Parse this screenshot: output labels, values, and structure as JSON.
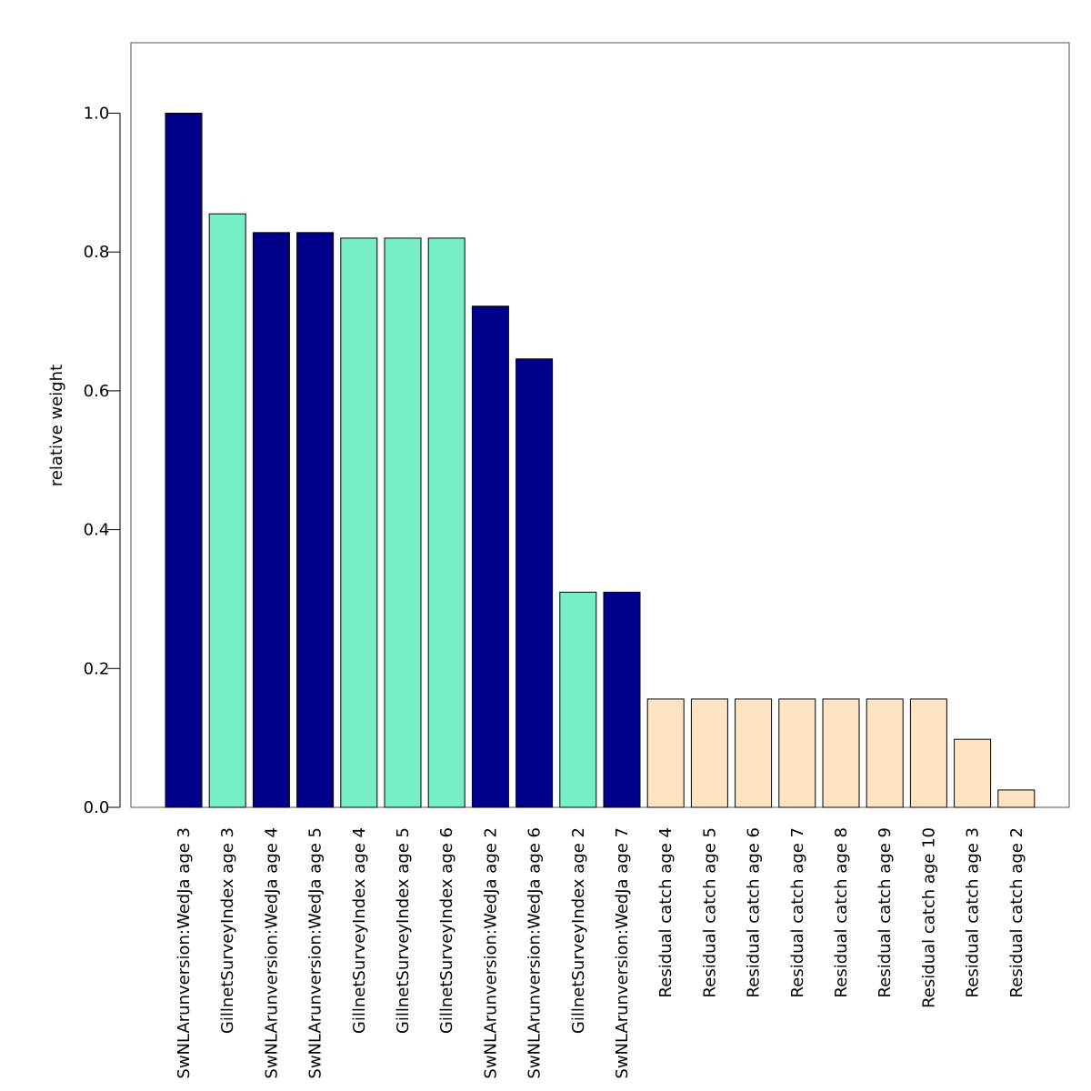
{
  "chart_data": {
    "type": "bar",
    "title": "",
    "xlabel": "",
    "ylabel": "relative weight",
    "ylim": [
      0,
      1.1
    ],
    "yticks": [
      "0.0",
      "0.2",
      "0.4",
      "0.6",
      "0.8",
      "1.0"
    ],
    "grid": false,
    "legend": "none",
    "categories": [
      "SwNLArunversion:WedJa age 3",
      "GillnetSurveyIndex age 3",
      "SwNLArunversion:WedJa age 4",
      "SwNLArunversion:WedJa age 5",
      "GillnetSurveyIndex age 4",
      "GillnetSurveyIndex age 5",
      "GillnetSurveyIndex age 6",
      "SwNLArunversion:WedJa age 2",
      "SwNLArunversion:WedJa age 6",
      "GillnetSurveyIndex age 2",
      "SwNLArunversion:WedJa age 7",
      "Residual catch age 4",
      "Residual catch age 5",
      "Residual catch age 6",
      "Residual catch age 7",
      "Residual catch age 8",
      "Residual catch age 9",
      "Residual catch age 10",
      "Residual catch age 3",
      "Residual catch age 2"
    ],
    "values": [
      1.0,
      0.855,
      0.828,
      0.828,
      0.82,
      0.82,
      0.82,
      0.722,
      0.646,
      0.31,
      0.31,
      0.156,
      0.156,
      0.156,
      0.156,
      0.156,
      0.156,
      0.156,
      0.098,
      0.025
    ],
    "colors": [
      "#00008B",
      "#76EEC6",
      "#00008B",
      "#00008B",
      "#76EEC6",
      "#76EEC6",
      "#76EEC6",
      "#00008B",
      "#00008B",
      "#76EEC6",
      "#00008B",
      "#FFE4C4",
      "#FFE4C4",
      "#FFE4C4",
      "#FFE4C4",
      "#FFE4C4",
      "#FFE4C4",
      "#FFE4C4",
      "#FFE4C4",
      "#FFE4C4"
    ]
  }
}
